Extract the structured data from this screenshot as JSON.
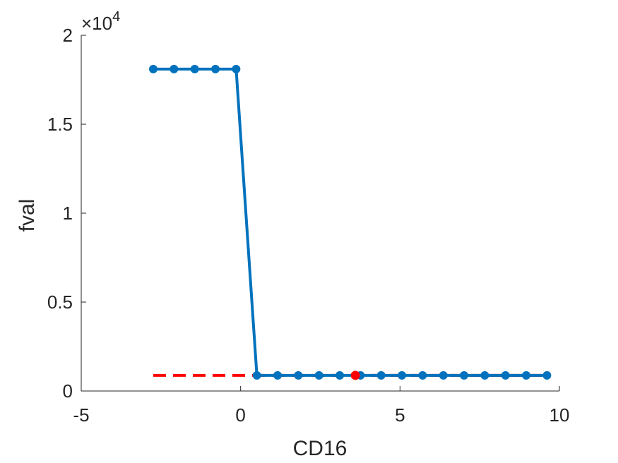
{
  "chart_data": {
    "type": "line",
    "xlabel": "CD16",
    "ylabel": "fval",
    "xlim": [
      -5,
      10
    ],
    "ylim": [
      0,
      20000
    ],
    "xticks": [
      -5,
      0,
      5,
      10
    ],
    "xtick_labels": [
      "-5",
      "0",
      "5",
      "10"
    ],
    "yticks": [
      0,
      5000,
      10000,
      15000,
      20000
    ],
    "ytick_labels": [
      "0",
      "0.5",
      "1",
      "1.5",
      "2"
    ],
    "y_exponent_label": "×10",
    "y_exponent_power": "4",
    "grid": false,
    "series": [
      {
        "style": "solid-markers",
        "color": "#0072BD",
        "x": [
          -2.74,
          -2.09,
          -1.44,
          -0.79,
          -0.14,
          0.51,
          1.16,
          1.81,
          2.46,
          3.11,
          3.76,
          4.41,
          5.06,
          5.71,
          6.36,
          7.01,
          7.66,
          8.31,
          8.96,
          9.61
        ],
        "y": [
          18100,
          18100,
          18100,
          18100,
          18100,
          880,
          880,
          880,
          880,
          880,
          880,
          880,
          880,
          880,
          880,
          880,
          880,
          880,
          880,
          880
        ]
      },
      {
        "style": "dashed",
        "color": "#FF0000",
        "x": [
          -2.74,
          9.61
        ],
        "y": [
          880,
          880
        ]
      }
    ],
    "highlight_point": {
      "x": 3.6,
      "y": 880,
      "color": "#FF0000"
    }
  }
}
